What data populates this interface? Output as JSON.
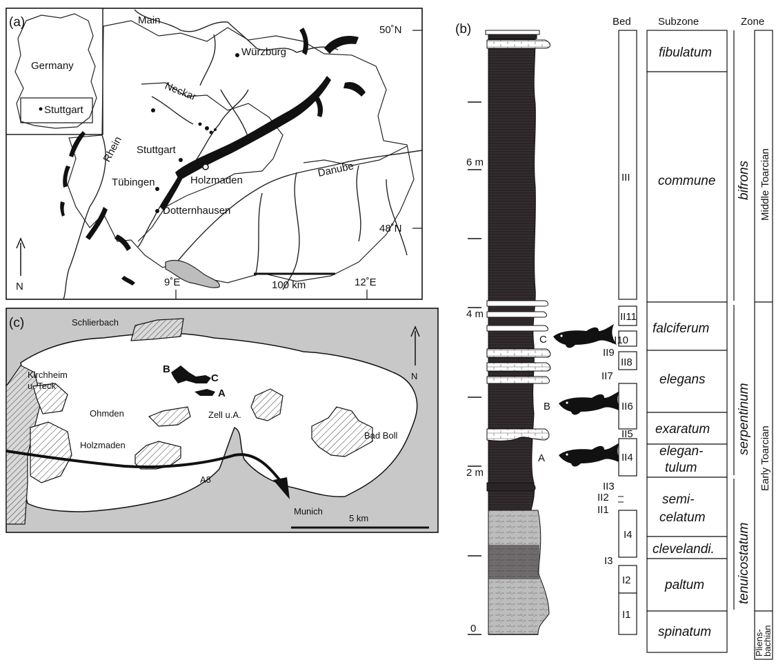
{
  "panel_a": {
    "label": "(a)",
    "inset_country": "Germany",
    "inset_city": "Stuttgart",
    "rivers": [
      "Main",
      "Neckar",
      "Rhein",
      "Danube"
    ],
    "towns": [
      "Würzburg",
      "Stuttgart",
      "Tübingen",
      "Holzmaden",
      "Dotternhausen"
    ],
    "lat_labels": [
      "50˚N",
      "48˚N"
    ],
    "lon_labels": [
      "9˚E",
      "12˚E"
    ],
    "north": "N",
    "scale": "100 km"
  },
  "panel_b": {
    "label": "(b)",
    "headers": {
      "bed": "Bed",
      "subzone": "Subzone",
      "zone": "Zone"
    },
    "depth_labels": [
      "6 m",
      "4 m",
      "2 m",
      "0"
    ],
    "specimens": [
      "C",
      "B",
      "A"
    ],
    "beds": [
      "III",
      "II11",
      "II10",
      "II9",
      "II8",
      "II7",
      "II6",
      "II5",
      "II4",
      "II3",
      "II2",
      "II1",
      "I4",
      "I3",
      "I2",
      "I1"
    ],
    "subzones": [
      {
        "text": [
          "fibulatum"
        ]
      },
      {
        "text": [
          "commune"
        ]
      },
      {
        "text": [
          "falciferum"
        ]
      },
      {
        "text": [
          "elegans"
        ]
      },
      {
        "text": [
          "exaratum"
        ]
      },
      {
        "text": [
          "elegan-",
          "tulum"
        ]
      },
      {
        "text": [
          "semi-",
          "celatum"
        ]
      },
      {
        "text": [
          "clevelandi."
        ]
      },
      {
        "text": [
          "paltum"
        ]
      },
      {
        "text": [
          "spinatum"
        ]
      }
    ],
    "zones": [
      "bifrons",
      "serpentinum",
      "tenuicostatum"
    ],
    "stages": [
      "Middle Toarcian",
      "Early Toarcian",
      "Pliens-",
      "bachian"
    ]
  },
  "panel_c": {
    "label": "(c)",
    "places": [
      "Schlierbach",
      "Kirchheim",
      "u. Teck",
      "Ohmden",
      "Zell u.A.",
      "Bad Boll",
      "Holzmaden",
      "Munich"
    ],
    "sites": [
      "B",
      "C",
      "A"
    ],
    "road": "A8",
    "north": "N",
    "scale": "5 km"
  },
  "colors": {
    "shale": "#2a2426",
    "fill_grey": "#c8c8c8",
    "ink": "#111111"
  }
}
